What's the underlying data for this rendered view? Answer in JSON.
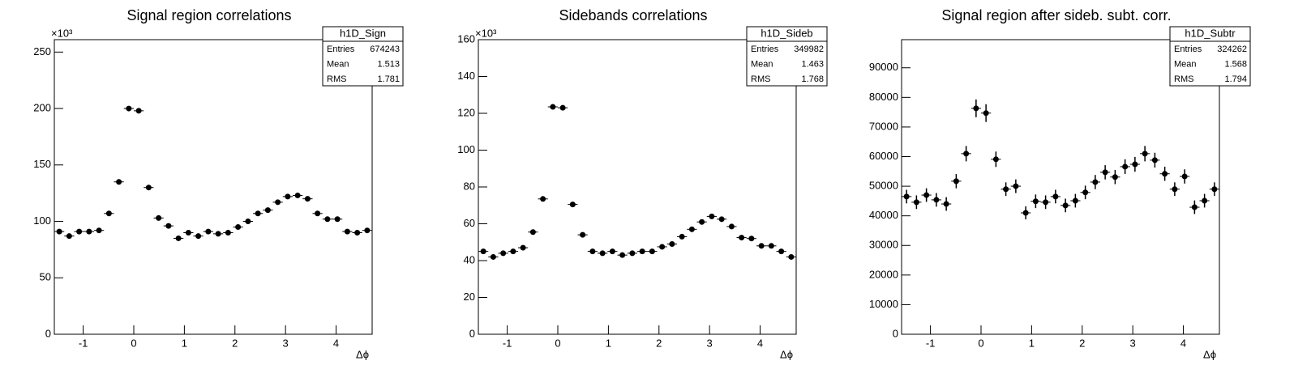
{
  "chart_data": [
    {
      "type": "histogram",
      "title": "Signal region correlations",
      "x_label": "Δϕ",
      "y_exponent_label": "×10³",
      "bins": [
        -1.5708,
        -1.3744,
        -1.1781,
        -0.9817,
        -0.7854,
        -0.589,
        -0.3927,
        -0.1963,
        0,
        0.1963,
        0.3927,
        0.589,
        0.7854,
        0.9817,
        1.1781,
        1.3744,
        1.5708,
        1.7671,
        1.9635,
        2.1598,
        2.3562,
        2.5525,
        2.7489,
        2.9452,
        3.1416,
        3.3379,
        3.5343,
        3.7306,
        3.927,
        4.1233,
        4.3197,
        4.516,
        4.7124
      ],
      "values": [
        91,
        87,
        91,
        91,
        92,
        107,
        135,
        200,
        198,
        130,
        103,
        96,
        85,
        90,
        87,
        91,
        89,
        90,
        95,
        100,
        107,
        110,
        117,
        122,
        123,
        120,
        107,
        102,
        102,
        91,
        90,
        92
      ],
      "color": "#000000",
      "xlim": [
        -1.5708,
        4.7124
      ],
      "xticks": [
        -1,
        0,
        1,
        2,
        3,
        4
      ],
      "ylim": [
        0,
        261
      ],
      "yticks": [
        0,
        50,
        100,
        150,
        200,
        250
      ],
      "stats": {
        "name": "h1D_Sign",
        "rows": [
          {
            "label": "Entries",
            "value": 674243
          },
          {
            "label": "Mean",
            "value": 1.513
          },
          {
            "label": "RMS",
            "value": 1.781
          }
        ]
      }
    },
    {
      "type": "histogram",
      "title": "Sidebands correlations",
      "x_label": "Δϕ",
      "y_exponent_label": "×10³",
      "bins": [
        -1.5708,
        -1.3744,
        -1.1781,
        -0.9817,
        -0.7854,
        -0.589,
        -0.3927,
        -0.1963,
        0,
        0.1963,
        0.3927,
        0.589,
        0.7854,
        0.9817,
        1.1781,
        1.3744,
        1.5708,
        1.7671,
        1.9635,
        2.1598,
        2.3562,
        2.5525,
        2.7489,
        2.9452,
        3.1416,
        3.3379,
        3.5343,
        3.7306,
        3.927,
        4.1233,
        4.3197,
        4.516,
        4.7124
      ],
      "values": [
        45,
        42,
        44,
        45,
        47,
        55.5,
        73.5,
        123.5,
        123,
        70.5,
        54,
        45,
        44,
        45,
        43,
        44,
        45,
        45,
        47.5,
        49,
        53,
        57,
        61,
        64,
        62.5,
        58.5,
        52.5,
        52,
        48,
        48,
        45,
        42
      ],
      "color": "#000000",
      "xlim": [
        -1.5708,
        4.7124
      ],
      "xticks": [
        -1,
        0,
        1,
        2,
        3,
        4
      ],
      "ylim": [
        0,
        160
      ],
      "yticks": [
        0,
        20,
        40,
        60,
        80,
        100,
        120,
        140,
        160
      ],
      "stats": {
        "name": "h1D_Sideb",
        "rows": [
          {
            "label": "Entries",
            "value": 349982
          },
          {
            "label": "Mean",
            "value": 1.463
          },
          {
            "label": "RMS",
            "value": 1.768
          }
        ]
      }
    },
    {
      "type": "histogram",
      "title": "Signal region after sideb. subt. corr.",
      "x_label": "Δϕ",
      "bins": [
        -1.5708,
        -1.3744,
        -1.1781,
        -0.9817,
        -0.7854,
        -0.589,
        -0.3927,
        -0.1963,
        0,
        0.1963,
        0.3927,
        0.589,
        0.7854,
        0.9817,
        1.1781,
        1.3744,
        1.5708,
        1.7671,
        1.9635,
        2.1598,
        2.3562,
        2.5525,
        2.7489,
        2.9452,
        3.1416,
        3.3379,
        3.5343,
        3.7306,
        3.927,
        4.1233,
        4.3197,
        4.516,
        4.7124
      ],
      "values": [
        46500,
        44600,
        47000,
        45400,
        44000,
        51700,
        61000,
        76300,
        74700,
        59100,
        49000,
        50000,
        41000,
        44900,
        44600,
        46500,
        43500,
        45100,
        47900,
        51400,
        54700,
        53100,
        56600,
        57400,
        61000,
        58800,
        54200,
        49000,
        53300,
        42900,
        45100,
        49000
      ],
      "errors": [
        2300,
        2300,
        2300,
        2300,
        2300,
        2400,
        2600,
        3000,
        3000,
        2600,
        2300,
        2300,
        2200,
        2300,
        2300,
        2300,
        2300,
        2300,
        2300,
        2400,
        2400,
        2400,
        2500,
        2500,
        2600,
        2500,
        2400,
        2300,
        2400,
        2300,
        2300,
        2300
      ],
      "color": "#000000",
      "xlim": [
        -1.5708,
        4.7124
      ],
      "xticks": [
        -1,
        0,
        1,
        2,
        3,
        4
      ],
      "ylim": [
        0,
        99500
      ],
      "yticks": [
        0,
        10000,
        20000,
        30000,
        40000,
        50000,
        60000,
        70000,
        80000,
        90000
      ],
      "stats": {
        "name": "h1D_Subtr",
        "rows": [
          {
            "label": "Entries",
            "value": 324262
          },
          {
            "label": "Mean",
            "value": 1.568
          },
          {
            "label": "RMS",
            "value": 1.794
          }
        ]
      }
    }
  ]
}
